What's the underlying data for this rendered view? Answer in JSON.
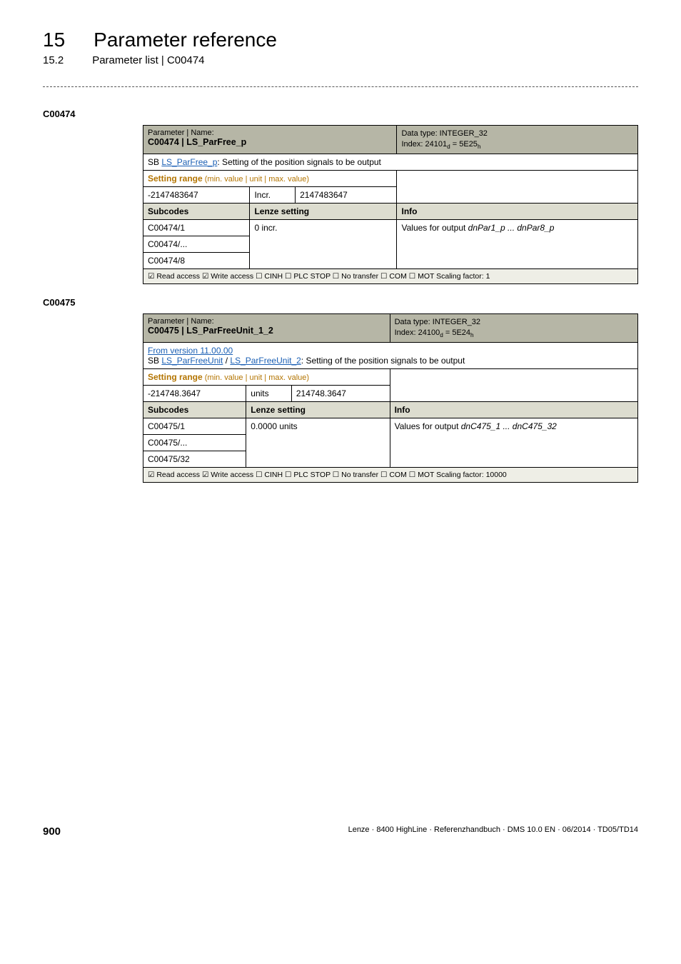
{
  "heading": {
    "chapter_num": "15",
    "chapter_title": "Parameter reference",
    "section_num": "15.2",
    "section_title": "Parameter list | C00474"
  },
  "params": [
    {
      "id": "C00474",
      "name_line1": "Parameter | Name:",
      "name_line2": "C00474 | LS_ParFree_p",
      "dt_line1": "Data type: INTEGER_32",
      "dt_line2_prefix": "Index: 24101",
      "dt_line2_d": "d",
      "dt_line2_mid": " = 5E25",
      "dt_line2_h": "h",
      "desc_prefix": "SB ",
      "desc_link": "LS_ParFree_p",
      "desc_suffix": ": Setting of the position signals to be output",
      "from_version": "",
      "setting_label": "Setting range",
      "setting_sub": " (min. value | unit | max. value)",
      "min": "-2147483647",
      "unit": "Incr.",
      "max": "2147483647",
      "subcodes_label": "Subcodes",
      "lenze_label": "Lenze setting",
      "info_label": "Info",
      "rows": [
        {
          "sc": "C00474/1",
          "val": "0 incr.",
          "info_prefix": "Values for output ",
          "info_italic": "dnPar1_p ... dnPar8_p"
        },
        {
          "sc": "C00474/...",
          "val": "",
          "info_prefix": "",
          "info_italic": ""
        },
        {
          "sc": "C00474/8",
          "val": "",
          "info_prefix": "",
          "info_italic": ""
        }
      ],
      "footer": "☑ Read access   ☑ Write access   ☐ CINH   ☐ PLC STOP   ☐ No transfer   ☐ COM   ☐ MOT    Scaling factor: 1"
    },
    {
      "id": "C00475",
      "name_line1": "Parameter | Name:",
      "name_line2": "C00475 | LS_ParFreeUnit_1_2",
      "dt_line1": "Data type: INTEGER_32",
      "dt_line2_prefix": "Index: 24100",
      "dt_line2_d": "d",
      "dt_line2_mid": " = 5E24",
      "dt_line2_h": "h",
      "from_version": "From version 11.00.00",
      "desc_prefix": "SB ",
      "desc_link": "LS_ParFreeUnit",
      "desc_mid": " / ",
      "desc_link2": "LS_ParFreeUnit_2",
      "desc_suffix": ": Setting of the position signals to be output",
      "setting_label": "Setting range",
      "setting_sub": " (min. value | unit | max. value)",
      "min": "-214748.3647",
      "unit": "units",
      "max": "214748.3647",
      "subcodes_label": "Subcodes",
      "lenze_label": "Lenze setting",
      "info_label": "Info",
      "rows": [
        {
          "sc": "C00475/1",
          "val": "0.0000 units",
          "info_prefix": "Values for output ",
          "info_italic": "dnC475_1 ... dnC475_32"
        },
        {
          "sc": "C00475/...",
          "val": "",
          "info_prefix": "",
          "info_italic": ""
        },
        {
          "sc": "C00475/32",
          "val": "",
          "info_prefix": "",
          "info_italic": ""
        }
      ],
      "footer": "☑ Read access   ☑ Write access   ☐ CINH   ☐ PLC STOP   ☐ No transfer   ☐ COM   ☐ MOT    Scaling factor: 10000"
    }
  ],
  "footer": {
    "page": "900",
    "meta": "Lenze · 8400 HighLine · Referenzhandbuch · DMS 10.0 EN · 06/2014 · TD05/TD14"
  }
}
